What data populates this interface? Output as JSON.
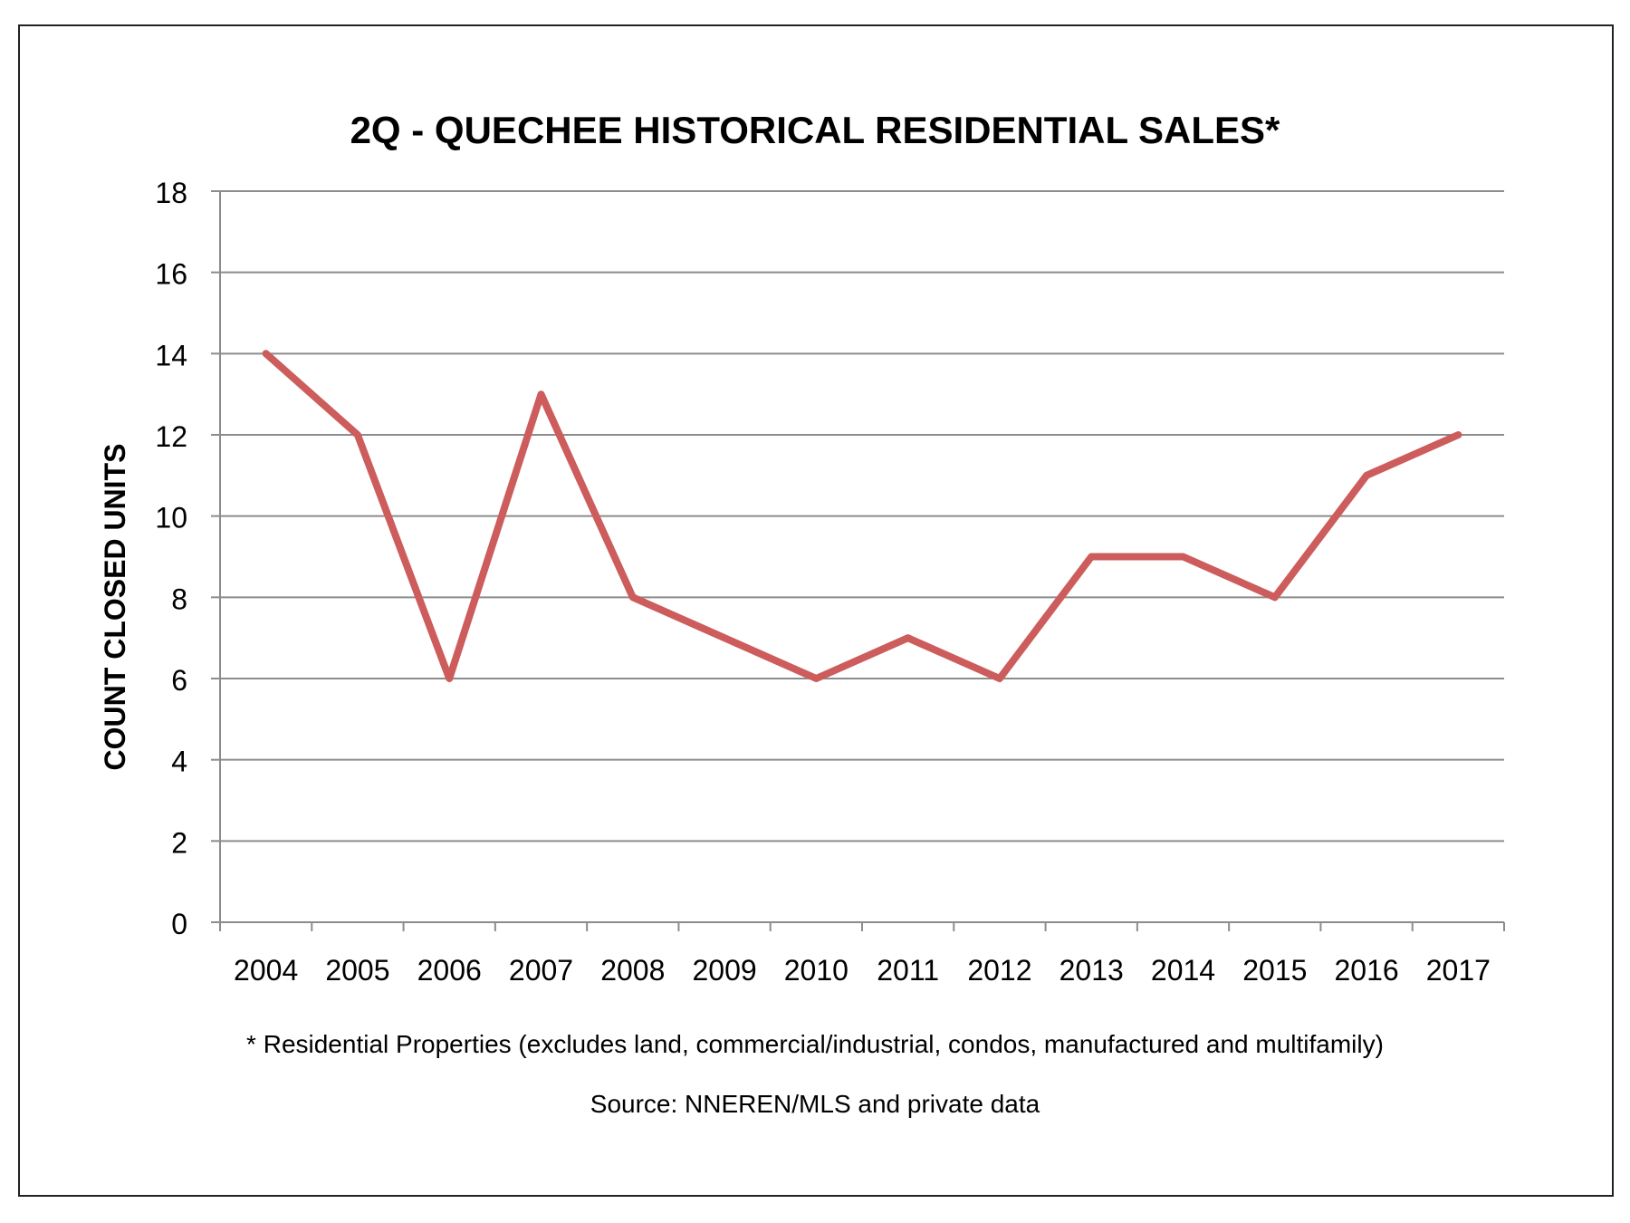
{
  "chart_data": {
    "type": "line",
    "title": "2Q - QUECHEE HISTORICAL RESIDENTIAL SALES*",
    "xlabel": "",
    "ylabel": "COUNT CLOSED UNITS",
    "categories": [
      "2004",
      "2005",
      "2006",
      "2007",
      "2008",
      "2009",
      "2010",
      "2011",
      "2012",
      "2013",
      "2014",
      "2015",
      "2016",
      "2017"
    ],
    "series": [
      {
        "values": [
          14,
          12,
          6,
          13,
          8,
          7,
          6,
          7,
          6,
          9,
          9,
          8,
          11,
          12
        ],
        "color": "#cd5c5c"
      }
    ],
    "ylim": [
      0,
      18
    ],
    "yticks": [
      0,
      2,
      4,
      6,
      8,
      10,
      12,
      14,
      16,
      18
    ],
    "grid": true,
    "legend": "none",
    "footnote": "* Residential Properties (excludes land, commercial/industrial, condos, manufactured and multifamily)",
    "source": "Source: NNEREN/MLS and private data",
    "colors": {
      "line": "#cd5c5c",
      "grid": "#8c8c8c",
      "axis": "#8c8c8c",
      "frame": "#222222"
    }
  }
}
